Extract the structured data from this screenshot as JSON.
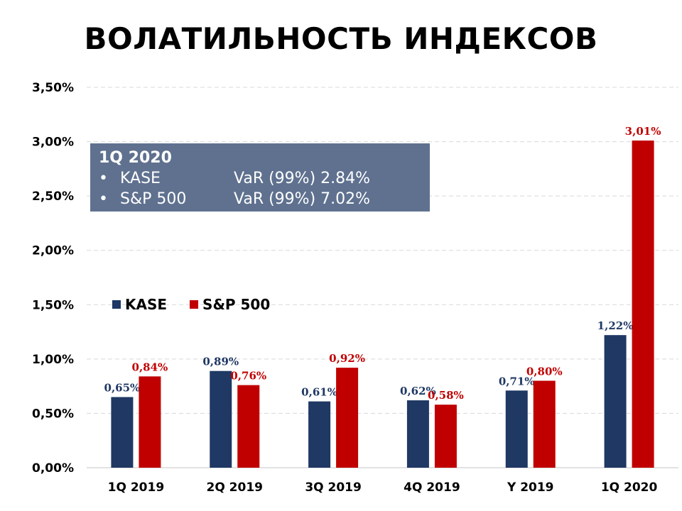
{
  "title": "ВОЛАТИЛЬНОСТЬ ИНДЕКСОВ",
  "info_box": {
    "header": "1Q 2020",
    "rows": [
      {
        "bullet": "•",
        "name": "KASE",
        "value": "VaR (99%) 2.84%"
      },
      {
        "bullet": "•",
        "name": "S&P 500",
        "value": "VaR (99%) 7.02%"
      }
    ]
  },
  "colors": {
    "kase": "#1f3864",
    "sp500": "#c00000",
    "grid": "#d9d9d9"
  },
  "chart_data": {
    "type": "bar",
    "title": "ВОЛАТИЛЬНОСТЬ ИНДЕКСОВ",
    "xlabel": "",
    "ylabel": "",
    "ylim": [
      0,
      3.5
    ],
    "yticks": [
      0,
      0.5,
      1.0,
      1.5,
      2.0,
      2.5,
      3.0,
      3.5
    ],
    "ytick_labels": [
      "0,00%",
      "0,50%",
      "1,00%",
      "1,50%",
      "2,00%",
      "2,50%",
      "3,00%",
      "3,50%"
    ],
    "grid": true,
    "legend_position": "middle-left",
    "categories": [
      "1Q 2019",
      "2Q 2019",
      "3Q 2019",
      "4Q 2019",
      "Y 2019",
      "1Q 2020"
    ],
    "series": [
      {
        "name": "KASE",
        "values": [
          0.65,
          0.89,
          0.61,
          0.62,
          0.71,
          1.22
        ],
        "labels": [
          "0,65%",
          "0,89%",
          "0,61%",
          "0,62%",
          "0,71%",
          "1,22%"
        ]
      },
      {
        "name": "S&P 500",
        "values": [
          0.84,
          0.76,
          0.92,
          0.58,
          0.8,
          3.01
        ],
        "labels": [
          "0,84%",
          "0,76%",
          "0,92%",
          "0,58%",
          "0,80%",
          "3,01%"
        ]
      }
    ]
  }
}
